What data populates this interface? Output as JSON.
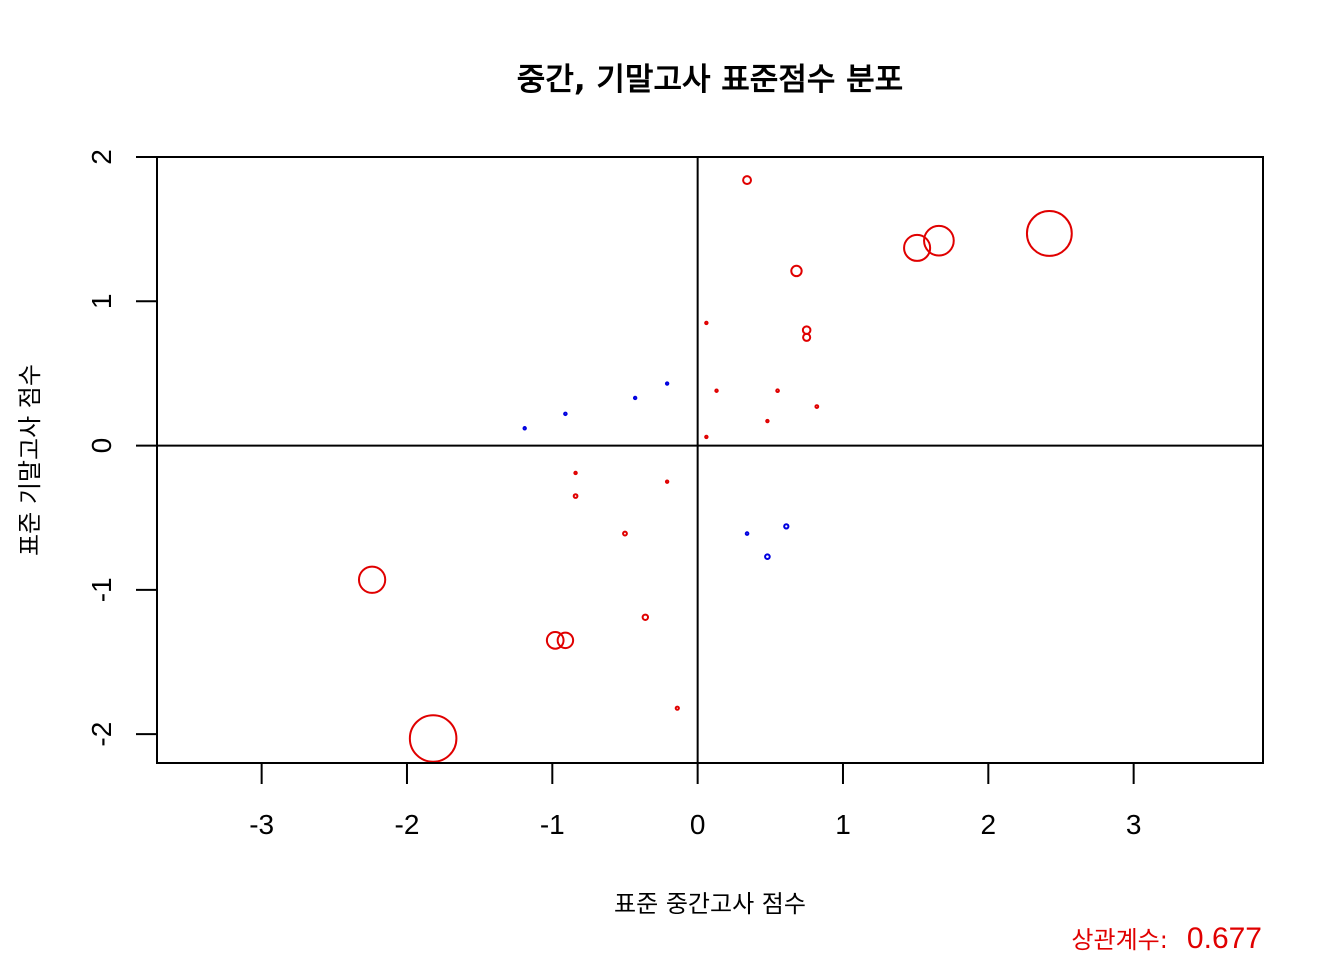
{
  "chart_data": {
    "type": "scatter",
    "title": "중간, 기말고사 표준점수 분포",
    "xlabel": "표준 중간고사 점수",
    "ylabel": "표준 기말고사 점수",
    "xlim": [
      -3.72,
      3.89
    ],
    "ylim": [
      -2.2,
      2.0
    ],
    "xticks": [
      -3,
      -2,
      -1,
      0,
      1,
      2,
      3
    ],
    "yticks": [
      -2,
      -1,
      0,
      1,
      2
    ],
    "reference_lines": {
      "x": 0,
      "y": 0
    },
    "grid": false,
    "legend": "none",
    "point_style": "open circles, radius proportional to |x*y|",
    "colors": {
      "same_sign": "#e00000",
      "opposite_sign": "#0000e0"
    },
    "points": [
      {
        "x": 0.34,
        "y": 1.84
      },
      {
        "x": 2.42,
        "y": 1.47
      },
      {
        "x": 1.66,
        "y": 1.42
      },
      {
        "x": 1.51,
        "y": 1.37
      },
      {
        "x": 0.68,
        "y": 1.21
      },
      {
        "x": 0.75,
        "y": 0.8
      },
      {
        "x": 0.75,
        "y": 0.75
      },
      {
        "x": 0.06,
        "y": 0.85
      },
      {
        "x": 0.13,
        "y": 0.38
      },
      {
        "x": 0.55,
        "y": 0.38
      },
      {
        "x": 0.82,
        "y": 0.27
      },
      {
        "x": 0.48,
        "y": 0.17
      },
      {
        "x": 0.06,
        "y": 0.06
      },
      {
        "x": -0.21,
        "y": 0.43
      },
      {
        "x": -0.43,
        "y": 0.33
      },
      {
        "x": -0.91,
        "y": 0.22
      },
      {
        "x": -1.19,
        "y": 0.12
      },
      {
        "x": -0.84,
        "y": -0.19
      },
      {
        "x": -0.21,
        "y": -0.25
      },
      {
        "x": -0.84,
        "y": -0.35
      },
      {
        "x": -0.5,
        "y": -0.61
      },
      {
        "x": -0.36,
        "y": -1.19
      },
      {
        "x": -0.14,
        "y": -1.82
      },
      {
        "x": -0.98,
        "y": -1.35
      },
      {
        "x": -0.91,
        "y": -1.35
      },
      {
        "x": -2.24,
        "y": -0.93
      },
      {
        "x": -1.82,
        "y": -2.03
      },
      {
        "x": 0.34,
        "y": -0.61
      },
      {
        "x": 0.61,
        "y": -0.56
      },
      {
        "x": 0.48,
        "y": -0.77
      }
    ],
    "correlation": {
      "label": "상관계수:",
      "value": "0.677"
    }
  }
}
